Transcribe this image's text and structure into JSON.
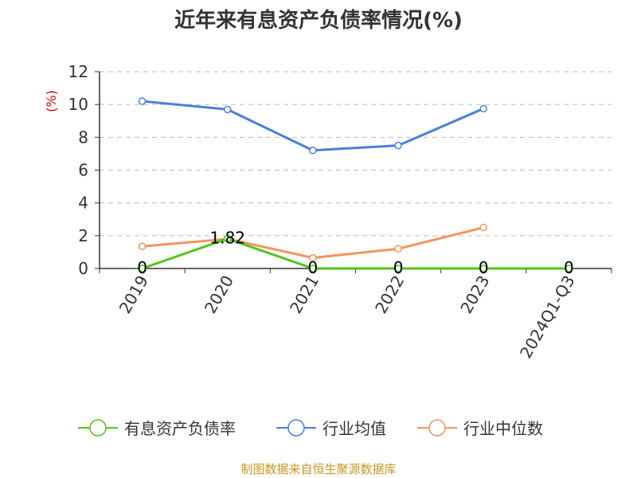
{
  "chart_data": {
    "type": "line",
    "title": "近年来有息资产负债率情况(%)",
    "ylabel": "(%)",
    "categories": [
      "2019",
      "2020",
      "2021",
      "2022",
      "2023",
      "2024Q1-Q3"
    ],
    "ylim": [
      0,
      12
    ],
    "yticks": [
      0,
      2,
      4,
      6,
      8,
      10,
      12
    ],
    "grid": true,
    "legend": "bottom",
    "series": [
      {
        "name": "有息资产负债率",
        "color": "#52c41a",
        "values": [
          0,
          1.82,
          0,
          0,
          0,
          0
        ],
        "labels": [
          "0",
          "1.82",
          "0",
          "0",
          "0",
          "0"
        ]
      },
      {
        "name": "行业均值",
        "color": "#4a7fdb",
        "values": [
          10.2,
          9.7,
          7.2,
          7.5,
          9.75,
          null
        ]
      },
      {
        "name": "行业中位数",
        "color": "#f59361",
        "values": [
          1.35,
          1.8,
          0.65,
          1.2,
          2.5,
          null
        ]
      }
    ]
  },
  "source": "制图数据来自恒生聚源数据库"
}
